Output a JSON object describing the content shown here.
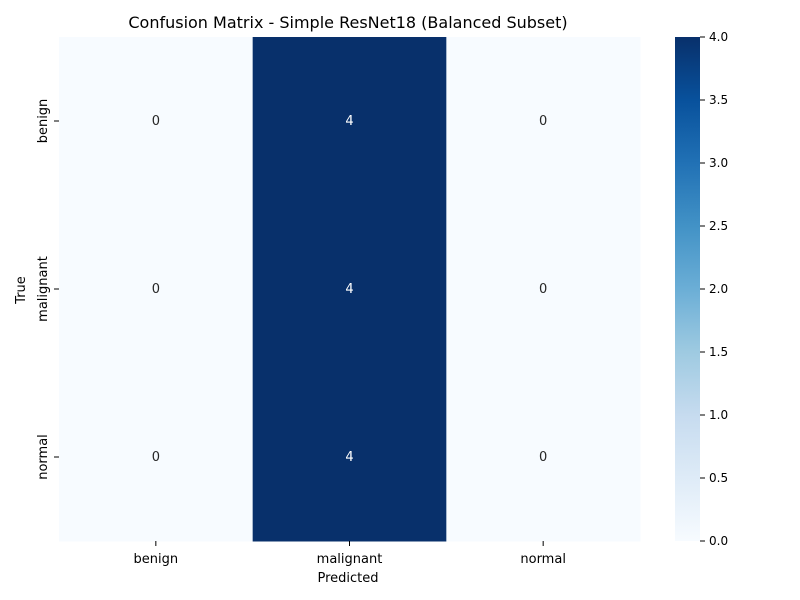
{
  "chart_data": {
    "type": "heatmap",
    "title": "Confusion Matrix - Simple ResNet18 (Balanced Subset)",
    "xlabel": "Predicted",
    "ylabel": "True",
    "x_categories": [
      "benign",
      "malignant",
      "normal"
    ],
    "y_categories": [
      "benign",
      "malignant",
      "normal"
    ],
    "values": [
      [
        0,
        4,
        0
      ],
      [
        0,
        4,
        0
      ],
      [
        0,
        4,
        0
      ]
    ],
    "colorbar": {
      "min": 0,
      "max": 4,
      "ticks": [
        "0.0",
        "0.5",
        "1.0",
        "1.5",
        "2.0",
        "2.5",
        "3.0",
        "3.5",
        "4.0"
      ],
      "colormap": "Blues"
    },
    "colors": {
      "low": "#f7fbff",
      "high": "#08306b"
    }
  }
}
